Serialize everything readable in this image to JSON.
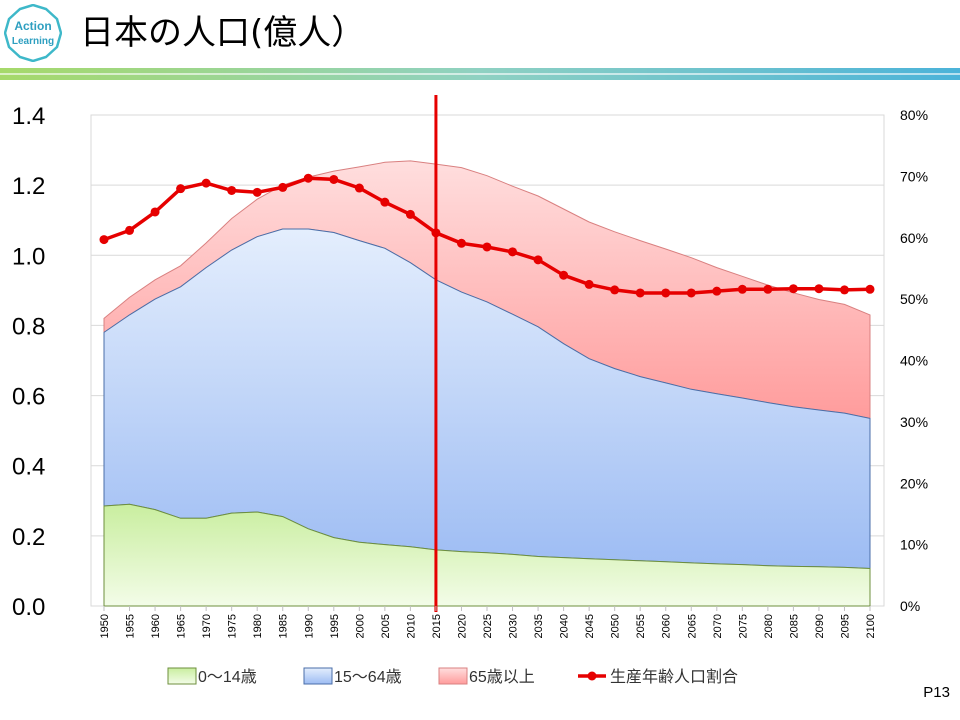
{
  "header": {
    "title": "日本の人口(億人）",
    "logo_line1": "Action",
    "logo_line2": "Learning"
  },
  "footer": {
    "page_number": "P13"
  },
  "colors": {
    "age_0_14": "#d9f5b8",
    "age_15_64": "#a9c6f6",
    "age_65_plus": "#ffa6a6",
    "ratio_line": "#e60000",
    "marker_line": "#e60000"
  },
  "chart_data": {
    "type": "area",
    "title": "日本の人口(億人）",
    "x": [
      1950,
      1955,
      1960,
      1965,
      1970,
      1975,
      1980,
      1985,
      1990,
      1995,
      2000,
      2005,
      2010,
      2015,
      2020,
      2025,
      2030,
      2035,
      2040,
      2045,
      2050,
      2055,
      2060,
      2065,
      2070,
      2075,
      2080,
      2085,
      2090,
      2095,
      2100
    ],
    "series": [
      {
        "name": "0〜14歳",
        "values": [
          0.285,
          0.29,
          0.275,
          0.25,
          0.25,
          0.265,
          0.268,
          0.255,
          0.22,
          0.195,
          0.182,
          0.175,
          0.169,
          0.16,
          0.155,
          0.152,
          0.147,
          0.141,
          0.138,
          0.135,
          0.132,
          0.129,
          0.126,
          0.123,
          0.12,
          0.118,
          0.115,
          0.113,
          0.112,
          0.11,
          0.107
        ]
      },
      {
        "name": "15〜64歳",
        "values": [
          0.495,
          0.54,
          0.6,
          0.66,
          0.715,
          0.75,
          0.785,
          0.82,
          0.855,
          0.87,
          0.86,
          0.845,
          0.81,
          0.77,
          0.74,
          0.715,
          0.685,
          0.655,
          0.61,
          0.57,
          0.545,
          0.525,
          0.51,
          0.495,
          0.485,
          0.475,
          0.465,
          0.455,
          0.447,
          0.44,
          0.428
        ]
      },
      {
        "name": "65歳以上",
        "values": [
          0.04,
          0.05,
          0.055,
          0.06,
          0.07,
          0.09,
          0.107,
          0.125,
          0.148,
          0.175,
          0.21,
          0.245,
          0.29,
          0.33,
          0.355,
          0.36,
          0.365,
          0.373,
          0.384,
          0.39,
          0.39,
          0.388,
          0.382,
          0.375,
          0.36,
          0.347,
          0.335,
          0.325,
          0.315,
          0.31,
          0.295
        ]
      },
      {
        "name": "生産年齢人口割合",
        "axis": "right",
        "values": [
          59.7,
          61.2,
          64.2,
          68.0,
          68.9,
          67.7,
          67.4,
          68.2,
          69.7,
          69.5,
          68.1,
          65.8,
          63.8,
          60.8,
          59.1,
          58.5,
          57.7,
          56.4,
          53.9,
          52.4,
          51.5,
          51.0,
          51.0,
          51.0,
          51.3,
          51.6,
          51.6,
          51.7,
          51.7,
          51.5,
          51.6
        ]
      }
    ],
    "y_left": {
      "min": 0,
      "max": 1.4,
      "ticks": [
        "0.0",
        "0.2",
        "0.4",
        "0.6",
        "0.8",
        "1.0",
        "1.2",
        "1.4"
      ]
    },
    "y_right": {
      "min": 0,
      "max": 80,
      "ticks": [
        "0%",
        "10%",
        "20%",
        "30%",
        "40%",
        "50%",
        "60%",
        "70%",
        "80%"
      ]
    },
    "marker_year": 2015,
    "legend": {
      "position": "bottom",
      "entries": [
        "0〜14歳",
        "15〜64歳",
        "65歳以上",
        "生産年齢人口割合"
      ]
    }
  }
}
